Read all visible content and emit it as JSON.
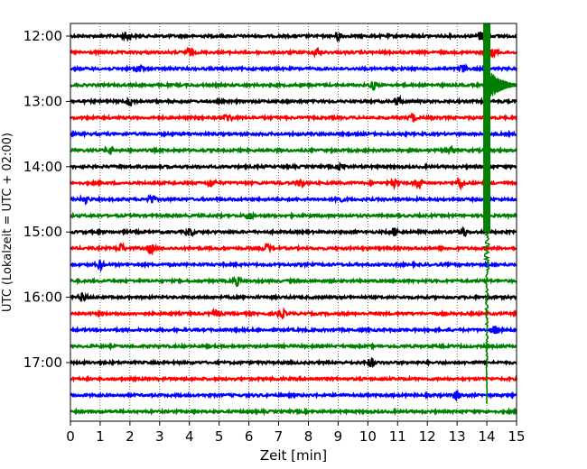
{
  "chart_data": {
    "type": "line",
    "subtype": "helicorder",
    "xlabel": "Zeit  [min]",
    "ylabel": "UTC (Lokalzeit = UTC + 02:00)",
    "xlim": [
      0,
      15
    ],
    "x_ticks": [
      "0",
      "1",
      "2",
      "3",
      "4",
      "5",
      "6",
      "7",
      "8",
      "9",
      "10",
      "11",
      "12",
      "13",
      "14",
      "15"
    ],
    "y_tick_labels": [
      "12:00",
      "13:00",
      "14:00",
      "15:00",
      "16:00",
      "17:00"
    ],
    "grid": "vertical dotted lines at each minute",
    "trace_colors": [
      "#000000",
      "#ff0000",
      "#0000ff",
      "#008000"
    ],
    "row_interval_min": 15,
    "traces": [
      {
        "start": "12:00",
        "color": "#000000",
        "events": [
          1.9,
          9.0,
          13.8
        ]
      },
      {
        "start": "12:15",
        "color": "#ff0000",
        "events": [
          4.0,
          8.3,
          14.2
        ]
      },
      {
        "start": "12:30",
        "color": "#0000ff",
        "events": [
          2.3,
          13.2
        ]
      },
      {
        "start": "12:45",
        "color": "#008000",
        "events": [
          10.2
        ]
      },
      {
        "start": "13:00",
        "color": "#000000",
        "events": [
          2.0,
          11.0
        ]
      },
      {
        "start": "13:15",
        "color": "#ff0000",
        "events": [
          5.3,
          11.5
        ]
      },
      {
        "start": "13:30",
        "color": "#0000ff",
        "events": []
      },
      {
        "start": "13:45",
        "color": "#008000",
        "events": [
          1.3,
          12.8
        ]
      },
      {
        "start": "14:00",
        "color": "#000000",
        "events": [
          9.1
        ]
      },
      {
        "start": "14:15",
        "color": "#ff0000",
        "events": [
          4.75,
          7.75,
          10.9,
          11.7,
          13.1
        ]
      },
      {
        "start": "14:30",
        "color": "#0000ff",
        "events": [
          0.5,
          2.7,
          9.0
        ]
      },
      {
        "start": "14:45",
        "color": "#008000",
        "events": [
          6.0
        ]
      },
      {
        "start": "15:00",
        "color": "#000000",
        "events": [
          4.0,
          10.9,
          13.2
        ]
      },
      {
        "start": "15:15",
        "color": "#ff0000",
        "events": [
          1.7,
          2.7,
          6.6
        ]
      },
      {
        "start": "15:30",
        "color": "#0000ff",
        "events": [
          1.0
        ]
      },
      {
        "start": "15:45",
        "color": "#008000",
        "events": [
          5.6
        ]
      },
      {
        "start": "16:00",
        "color": "#000000",
        "events": [
          0.4
        ]
      },
      {
        "start": "16:15",
        "color": "#ff0000",
        "events": [
          4.9,
          7.1
        ]
      },
      {
        "start": "16:30",
        "color": "#0000ff",
        "events": [
          14.3
        ]
      },
      {
        "start": "16:45",
        "color": "#008000",
        "events": []
      },
      {
        "start": "17:00",
        "color": "#000000",
        "events": [
          10.1
        ]
      },
      {
        "start": "17:15",
        "color": "#ff0000",
        "events": []
      },
      {
        "start": "17:30",
        "color": "#0000ff",
        "events": [
          13.0
        ]
      },
      {
        "start": "17:45",
        "color": "#008000",
        "events": []
      }
    ],
    "main_event": {
      "x_min": 14.0,
      "color": "#008000",
      "peak_trace_start": "12:45",
      "peak_x_min": [
        13.9,
        15.0
      ],
      "rows_spanned": [
        "12:00",
        "17:30"
      ]
    }
  }
}
